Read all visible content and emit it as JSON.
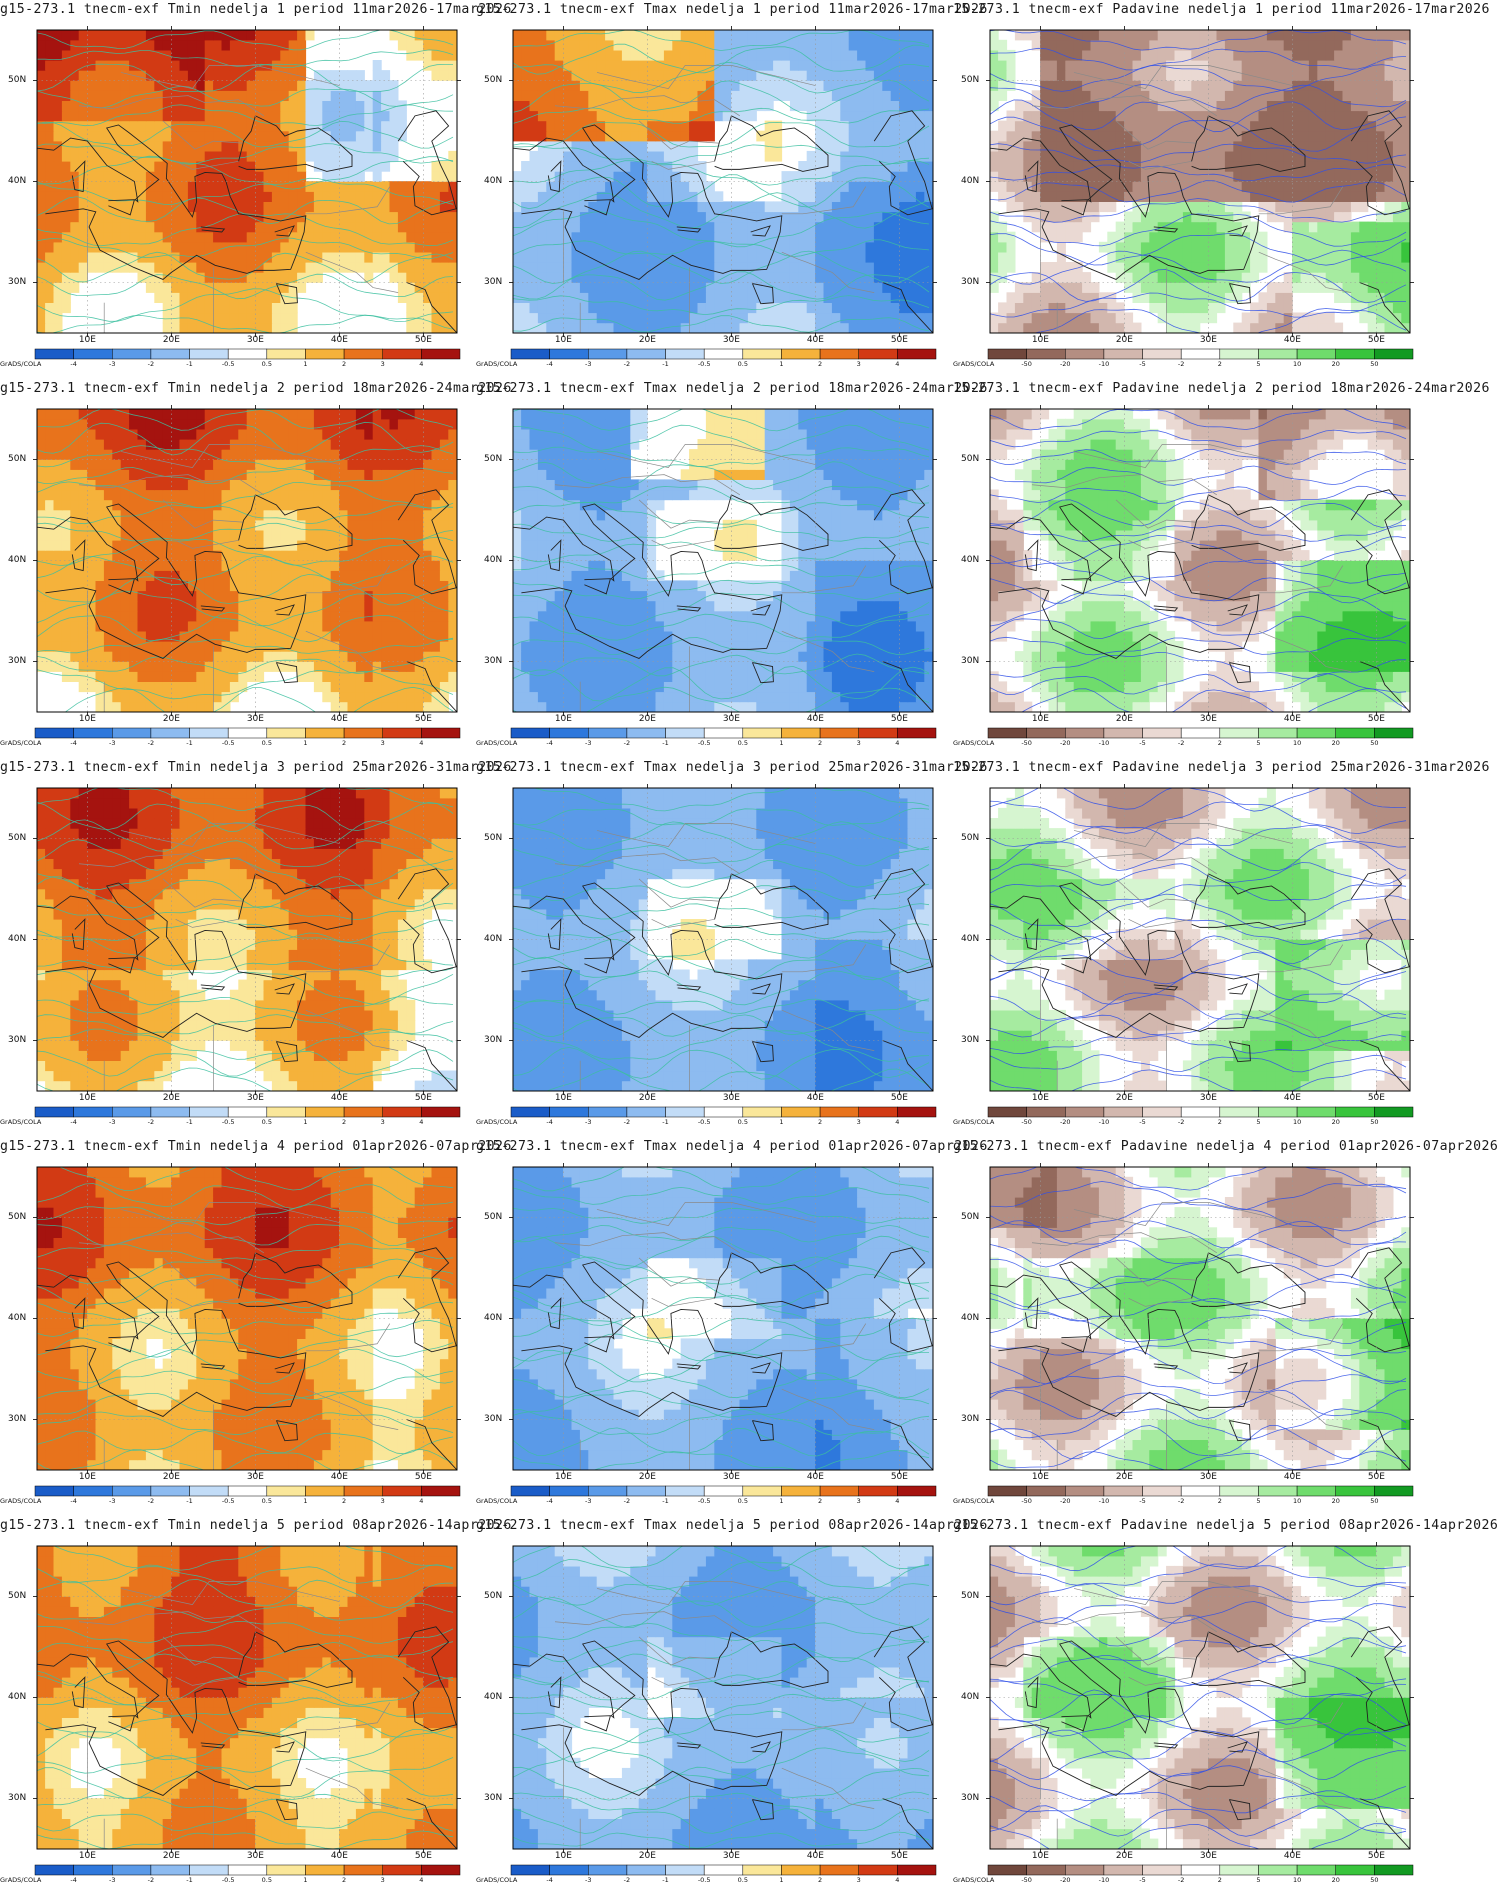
{
  "figure": {
    "brand": "GrADS/COLA",
    "lon_labels": [
      "10E",
      "20E",
      "30E",
      "40E",
      "50E"
    ],
    "lat_labels": [
      "50N",
      "40N",
      "30N"
    ]
  },
  "colorbars": {
    "temp": {
      "labels": [
        "-4",
        "-3",
        "-2",
        "-1",
        "-0.5",
        "0.5",
        "1",
        "2",
        "3",
        "4"
      ],
      "colors": [
        "#1a5cc8",
        "#2e78dc",
        "#5a9ae8",
        "#8dbbf0",
        "#c2dcf7",
        "#ffffff",
        "#fae79a",
        "#f5b23b",
        "#e8731c",
        "#d23a14",
        "#a5130f"
      ]
    },
    "precip": {
      "labels": [
        "-50",
        "-20",
        "-10",
        "-5",
        "-2",
        "2",
        "5",
        "10",
        "20",
        "50"
      ],
      "colors": [
        "#70473c",
        "#93695c",
        "#b48e82",
        "#d2b7ae",
        "#ead9d3",
        "#ffffff",
        "#d6f5d0",
        "#a6eba0",
        "#6fdc6c",
        "#38c43c",
        "#129a22"
      ]
    }
  },
  "rows": [
    {
      "week": "1",
      "period": "11mar2026-17mar2026"
    },
    {
      "week": "2",
      "period": "18mar2026-24mar2026"
    },
    {
      "week": "3",
      "period": "25mar2026-31mar2026"
    },
    {
      "week": "4",
      "period": "01apr2026-07apr2026"
    },
    {
      "week": "5",
      "period": "08apr2026-14apr2026"
    }
  ],
  "panels": [
    {
      "title": "g15-273.1 tnecm-exf Tmin nedelja 1 period 11mar2026-17mar2026",
      "variable": "Tmin",
      "scale": "temp",
      "icons": [
        "temperature-anomaly-map-icon"
      ]
    },
    {
      "title": "g15-273.1 tnecm-exf Tmax nedelja 1 period 11mar2026-17mar2026",
      "variable": "Tmax",
      "scale": "temp"
    },
    {
      "title": "15-273.1 tnecm-exf Padavine nedelja 1 period 11mar2026-17mar2026",
      "variable": "Padavine",
      "scale": "precip"
    },
    {
      "title": "g15-273.1 tnecm-exf Tmin nedelja 2 period 18mar2026-24mar2026",
      "variable": "Tmin",
      "scale": "temp"
    },
    {
      "title": "g15-273.1 tnecm-exf Tmax nedelja 2 period 18mar2026-24mar2026",
      "variable": "Tmax",
      "scale": "temp"
    },
    {
      "title": "15-273.1 tnecm-exf Padavine nedelja 2 period 18mar2026-24mar2026",
      "variable": "Padavine",
      "scale": "precip"
    },
    {
      "title": "g15-273.1 tnecm-exf Tmin nedelja 3 period 25mar2026-31mar2026",
      "variable": "Tmin",
      "scale": "temp"
    },
    {
      "title": "g15-273.1 tnecm-exf Tmax nedelja 3 period 25mar2026-31mar2026",
      "variable": "Tmax",
      "scale": "temp"
    },
    {
      "title": "15-273.1 tnecm-exf Padavine nedelja 3 period 25mar2026-31mar2026",
      "variable": "Padavine",
      "scale": "precip"
    },
    {
      "title": "g15-273.1 tnecm-exf Tmin nedelja 4 period 01apr2026-07apr2026",
      "variable": "Tmin",
      "scale": "temp"
    },
    {
      "title": "g15-273.1 tnecm-exf Tmax nedelja 4 period 01apr2026-07apr2026",
      "variable": "Tmax",
      "scale": "temp"
    },
    {
      "title": "g15-273.1 tnecm-exf Padavine nedelja 4 period 01apr2026-07apr2026",
      "variable": "Padavine",
      "scale": "precip"
    },
    {
      "title": "g15-273.1 tnecm-exf Tmin nedelja 5 period 08apr2026-14apr2026",
      "variable": "Tmin",
      "scale": "temp"
    },
    {
      "title": "g15-273.1 tnecm-exf Tmax nedelja 5 period 08apr2026-14apr2026",
      "variable": "Tmax",
      "scale": "temp"
    },
    {
      "title": "g15-273.1 tnecm-exf Padavine nedelja 5 period 08apr2026-14apr2026",
      "variable": "Padavine",
      "scale": "precip"
    }
  ]
}
